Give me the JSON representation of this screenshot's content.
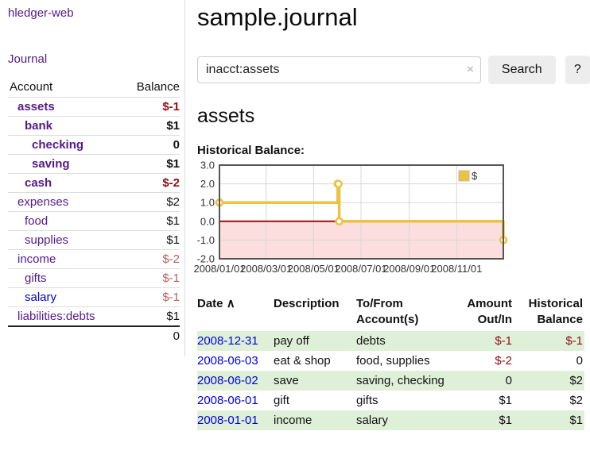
{
  "sidebar": {
    "brand": "hledger-web",
    "journal_link": "Journal",
    "account_header": "Account",
    "balance_header": "Balance",
    "accounts": [
      {
        "name": "assets",
        "depth": 0,
        "in_query": true,
        "dim": false,
        "unvisited": false,
        "balance": "$-1"
      },
      {
        "name": "bank",
        "depth": 1,
        "in_query": true,
        "dim": false,
        "unvisited": false,
        "balance": "$1"
      },
      {
        "name": "checking",
        "depth": 2,
        "in_query": true,
        "dim": false,
        "unvisited": false,
        "balance": "0"
      },
      {
        "name": "saving",
        "depth": 2,
        "in_query": true,
        "dim": false,
        "unvisited": false,
        "balance": "$1"
      },
      {
        "name": "cash",
        "depth": 1,
        "in_query": true,
        "dim": false,
        "unvisited": false,
        "balance": "$-2"
      },
      {
        "name": "expenses",
        "depth": 0,
        "in_query": false,
        "dim": false,
        "unvisited": false,
        "balance": "$2"
      },
      {
        "name": "food",
        "depth": 1,
        "in_query": false,
        "dim": false,
        "unvisited": false,
        "balance": "$1"
      },
      {
        "name": "supplies",
        "depth": 1,
        "in_query": false,
        "dim": false,
        "unvisited": false,
        "balance": "$1"
      },
      {
        "name": "income",
        "depth": 0,
        "in_query": false,
        "dim": true,
        "unvisited": false,
        "balance": "$-2"
      },
      {
        "name": "gifts",
        "depth": 1,
        "in_query": false,
        "dim": true,
        "unvisited": false,
        "balance": "$-1"
      },
      {
        "name": "salary",
        "depth": 1,
        "in_query": false,
        "dim": true,
        "unvisited": true,
        "balance": "$-1"
      },
      {
        "name": "liabilities:debts",
        "depth": 0,
        "in_query": false,
        "dim": false,
        "unvisited": false,
        "balance": "$1"
      }
    ],
    "total": "0"
  },
  "main": {
    "title": "sample.journal",
    "search": {
      "value": "inacct:assets",
      "clear_icon": "×",
      "search_button": "Search",
      "help_button": "?"
    },
    "account_heading": "assets",
    "chart_label": "Historical Balance:"
  },
  "chart_data": {
    "type": "line",
    "step": true,
    "title": "Historical Balance",
    "series": [
      {
        "name": "$",
        "color": "#edc240",
        "points": [
          [
            "2008-01-01",
            1
          ],
          [
            "2008-06-01",
            2
          ],
          [
            "2008-06-02",
            2
          ],
          [
            "2008-06-03",
            0
          ],
          [
            "2008-12-31",
            -1
          ]
        ]
      }
    ],
    "xlim": [
      "2008-01-01",
      "2008-12-31"
    ],
    "ylim": [
      -2,
      3
    ],
    "x_ticks": [
      "2008/01/01",
      "2008/03/01",
      "2008/05/01",
      "2008/07/01",
      "2008/09/01",
      "2008/11/01"
    ],
    "y_ticks": [
      "3.0",
      "2.0",
      "1.0",
      "0.0",
      "-1.0",
      "-2.0"
    ],
    "grid": true,
    "legend_position": "top-right",
    "negative_region_color": "#fcdede",
    "zero_line_color": "#991111",
    "grid_color": "#d8d8d8",
    "border_color": "#555555"
  },
  "register": {
    "headers": {
      "date": "Date",
      "description": "Description",
      "accounts": "To/From Account(s)",
      "amount": "Amount Out/In",
      "balance": "Historical Balance"
    },
    "sort_icon": "∧",
    "rows": [
      {
        "date": "2008-12-31",
        "description": "pay off",
        "accounts": "debts",
        "amount": "$-1",
        "balance": "$-1"
      },
      {
        "date": "2008-06-03",
        "description": "eat & shop",
        "accounts": "food, supplies",
        "amount": "$-2",
        "balance": "0"
      },
      {
        "date": "2008-06-02",
        "description": "save",
        "accounts": "saving, checking",
        "amount": "0",
        "balance": "$2"
      },
      {
        "date": "2008-06-01",
        "description": "gift",
        "accounts": "gifts",
        "amount": "$1",
        "balance": "$2"
      },
      {
        "date": "2008-01-01",
        "description": "income",
        "accounts": "salary",
        "amount": "$1",
        "balance": "$1"
      }
    ]
  },
  "colors": {
    "link_purple": "#551a8b",
    "link_blue": "#0000e0",
    "negative_strong": "#8b1016",
    "negative_dim": "#b5605e",
    "row_green": "#dff0d8",
    "chart_yellow": "#edc240"
  }
}
